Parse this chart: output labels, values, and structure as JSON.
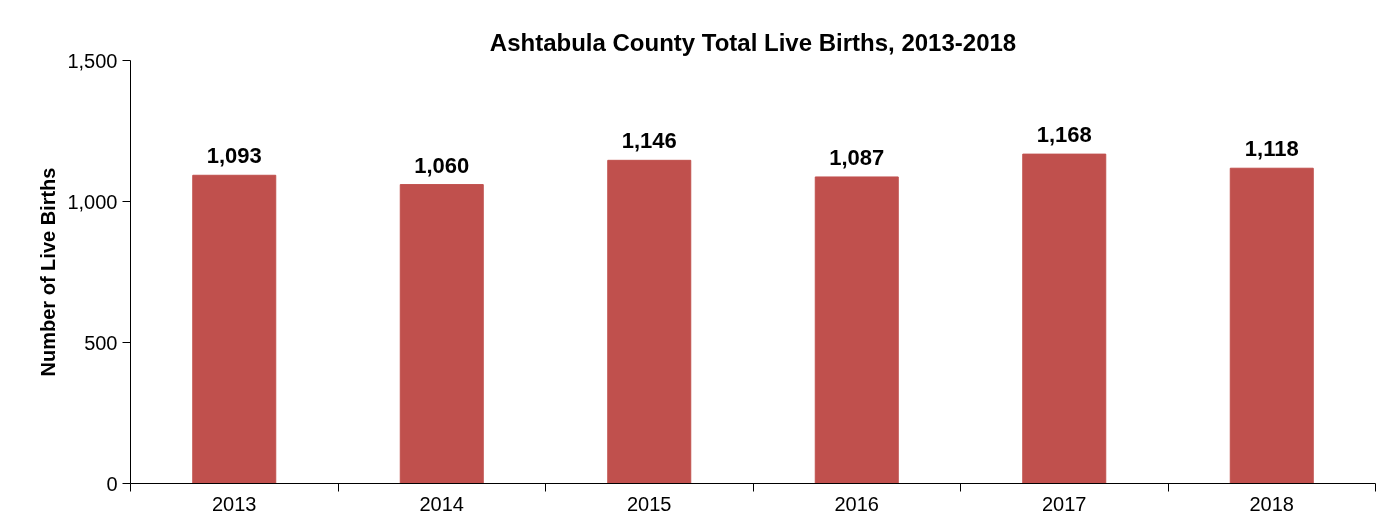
{
  "chart_data": {
    "type": "bar",
    "title": "Ashtabula County Total Live Births, 2013-2018",
    "ylabel": "Number of Live Births",
    "categories": [
      "2013",
      "2014",
      "2015",
      "2016",
      "2017",
      "2018"
    ],
    "values": [
      1093,
      1060,
      1146,
      1087,
      1168,
      1118
    ],
    "value_labels": [
      "1,093",
      "1,060",
      "1,146",
      "1,087",
      "1,168",
      "1,118"
    ],
    "color": "#c0504d",
    "ylim": [
      0,
      1500
    ],
    "yticks": [
      0,
      {
        "value": 500,
        "label": "500"
      },
      {
        "value": 1000,
        "label": "1,000"
      },
      {
        "value": 1500,
        "label": "1,500"
      }
    ],
    "grid": false
  }
}
